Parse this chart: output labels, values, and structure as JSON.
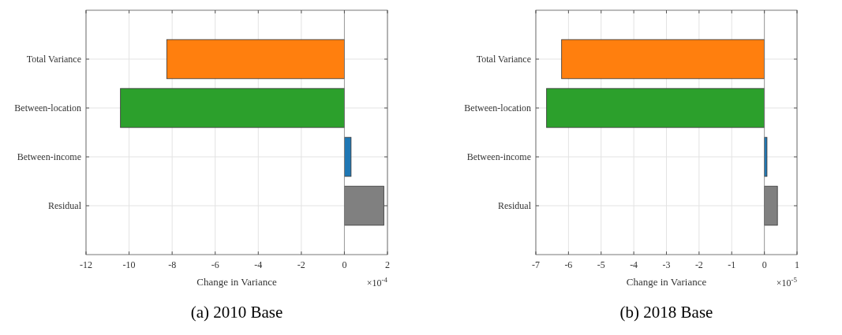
{
  "chart_data": [
    {
      "type": "bar",
      "orientation": "horizontal",
      "title": "(a) 2010 Base",
      "xlabel": "Change in Variance",
      "annotations": [
        "×10$^{-4}$"
      ],
      "categories": [
        "Total Variance",
        "Between-location",
        "Between-income",
        "Residual"
      ],
      "values": [
        -8.25,
        -10.4,
        0.31,
        1.83
      ],
      "colors": [
        "#ff7f0e",
        "#2ca02c",
        "#1f77b4",
        "#808080"
      ],
      "xlim": [
        -12,
        2
      ],
      "xticks": [
        -12,
        -10,
        -8,
        -6,
        -4,
        -2,
        0,
        2
      ],
      "grid": true
    },
    {
      "type": "bar",
      "orientation": "horizontal",
      "title": "(b) 2018 Base",
      "xlabel": "Change in Variance",
      "annotations": [
        "×10$^{-5}$"
      ],
      "categories": [
        "Total Variance",
        "Between-location",
        "Between-income",
        "Residual"
      ],
      "values": [
        -6.21,
        -6.67,
        0.08,
        0.4
      ],
      "colors": [
        "#ff7f0e",
        "#2ca02c",
        "#1f77b4",
        "#808080"
      ],
      "xlim": [
        -7,
        1
      ],
      "xticks": [
        -7,
        -6,
        -5,
        -4,
        -3,
        -2,
        -1,
        0,
        1
      ],
      "grid": true
    }
  ]
}
